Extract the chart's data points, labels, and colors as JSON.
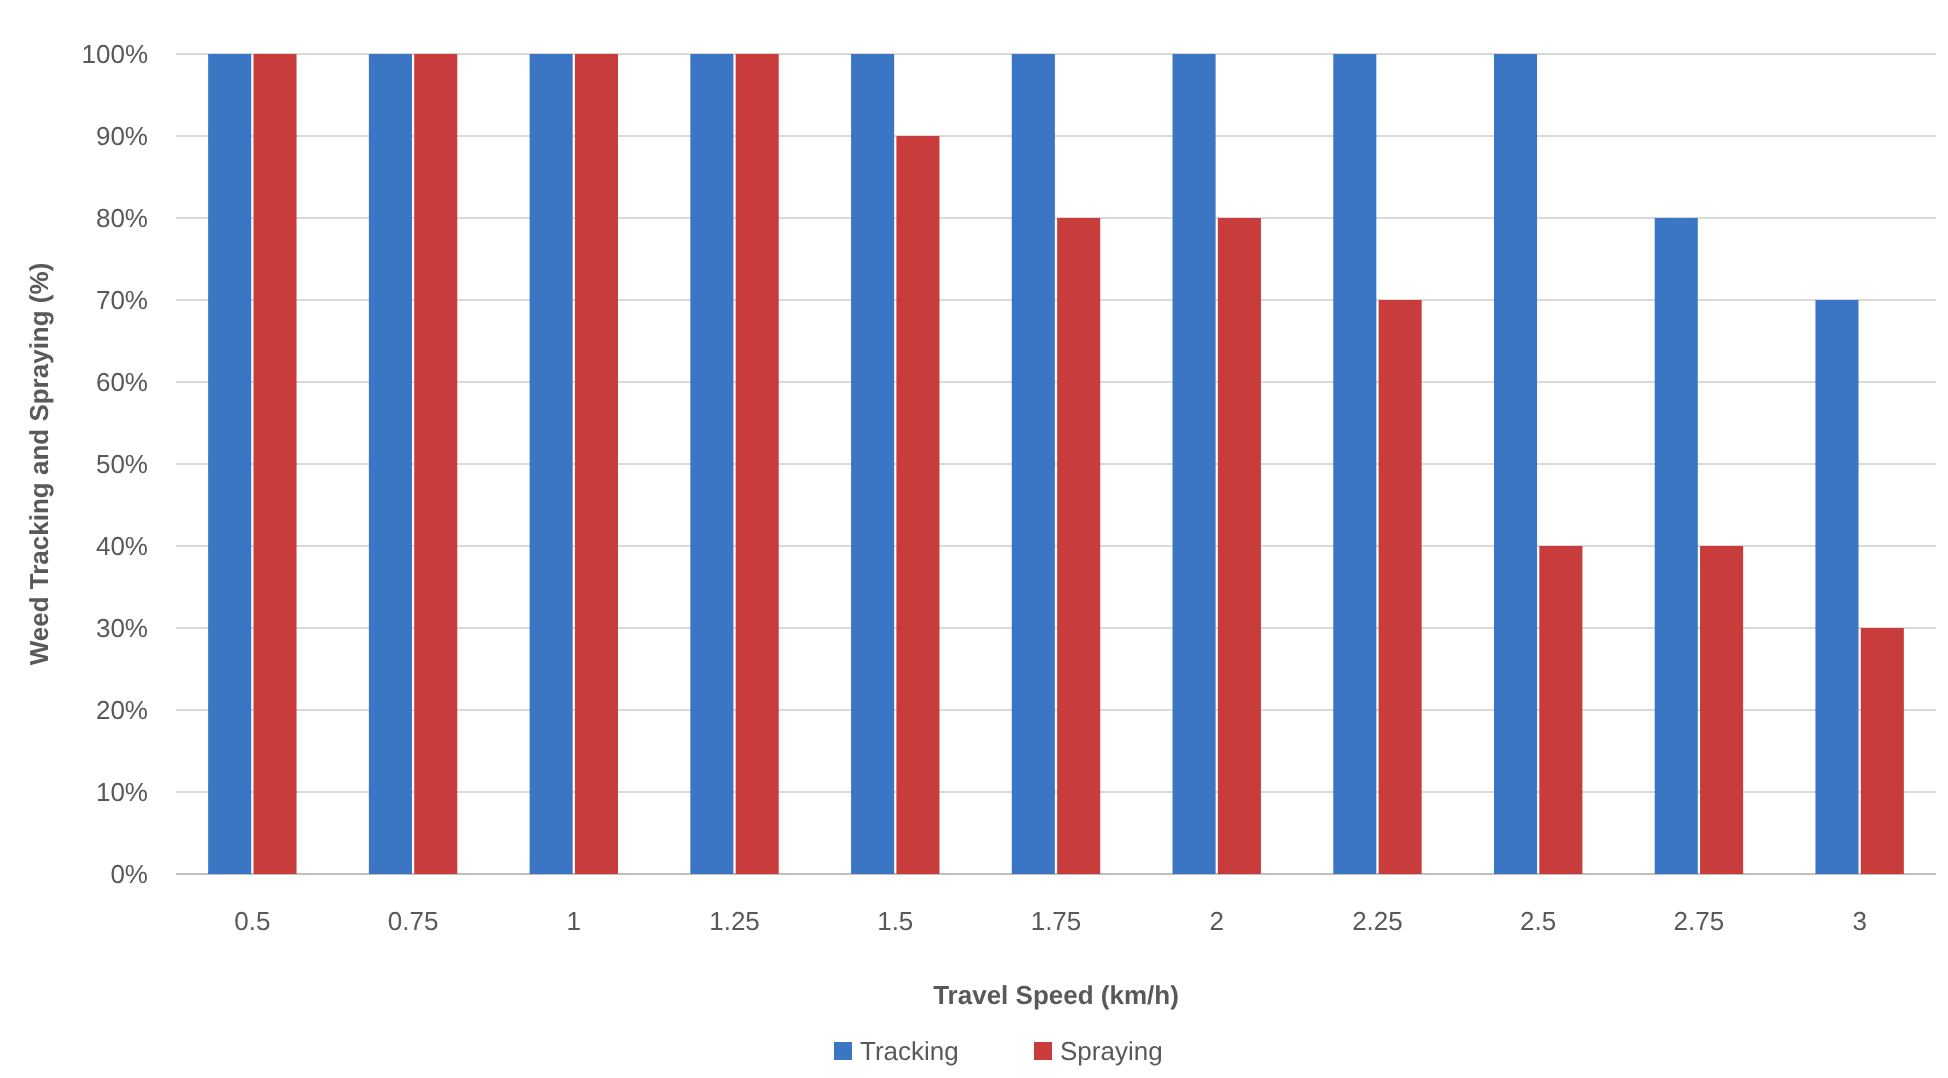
{
  "chart_data": {
    "type": "bar",
    "xlabel": "Travel Speed (km/h)",
    "ylabel": "Weed Tracking and Spraying (%)",
    "categories": [
      "0.5",
      "0.75",
      "1",
      "1.25",
      "1.5",
      "1.75",
      "2",
      "2.25",
      "2.5",
      "2.75",
      "3"
    ],
    "series": [
      {
        "name": "Tracking",
        "color": "#3a76c4",
        "values": [
          100,
          100,
          100,
          100,
          100,
          100,
          100,
          100,
          100,
          80,
          70
        ]
      },
      {
        "name": "Spraying",
        "color": "#c83c3b",
        "values": [
          100,
          100,
          100,
          100,
          90,
          80,
          80,
          70,
          40,
          40,
          30
        ]
      }
    ],
    "ylim": [
      0,
      100
    ],
    "yticks": [
      {
        "value": 0,
        "label": "0%"
      },
      {
        "value": 10,
        "label": "10%"
      },
      {
        "value": 20,
        "label": "20%"
      },
      {
        "value": 30,
        "label": "30%"
      },
      {
        "value": 40,
        "label": "40%"
      },
      {
        "value": 50,
        "label": "50%"
      },
      {
        "value": 60,
        "label": "60%"
      },
      {
        "value": 70,
        "label": "70%"
      },
      {
        "value": 80,
        "label": "80%"
      },
      {
        "value": 90,
        "label": "90%"
      },
      {
        "value": 100,
        "label": "100%"
      }
    ],
    "grid": "y",
    "legend": "bottom"
  }
}
